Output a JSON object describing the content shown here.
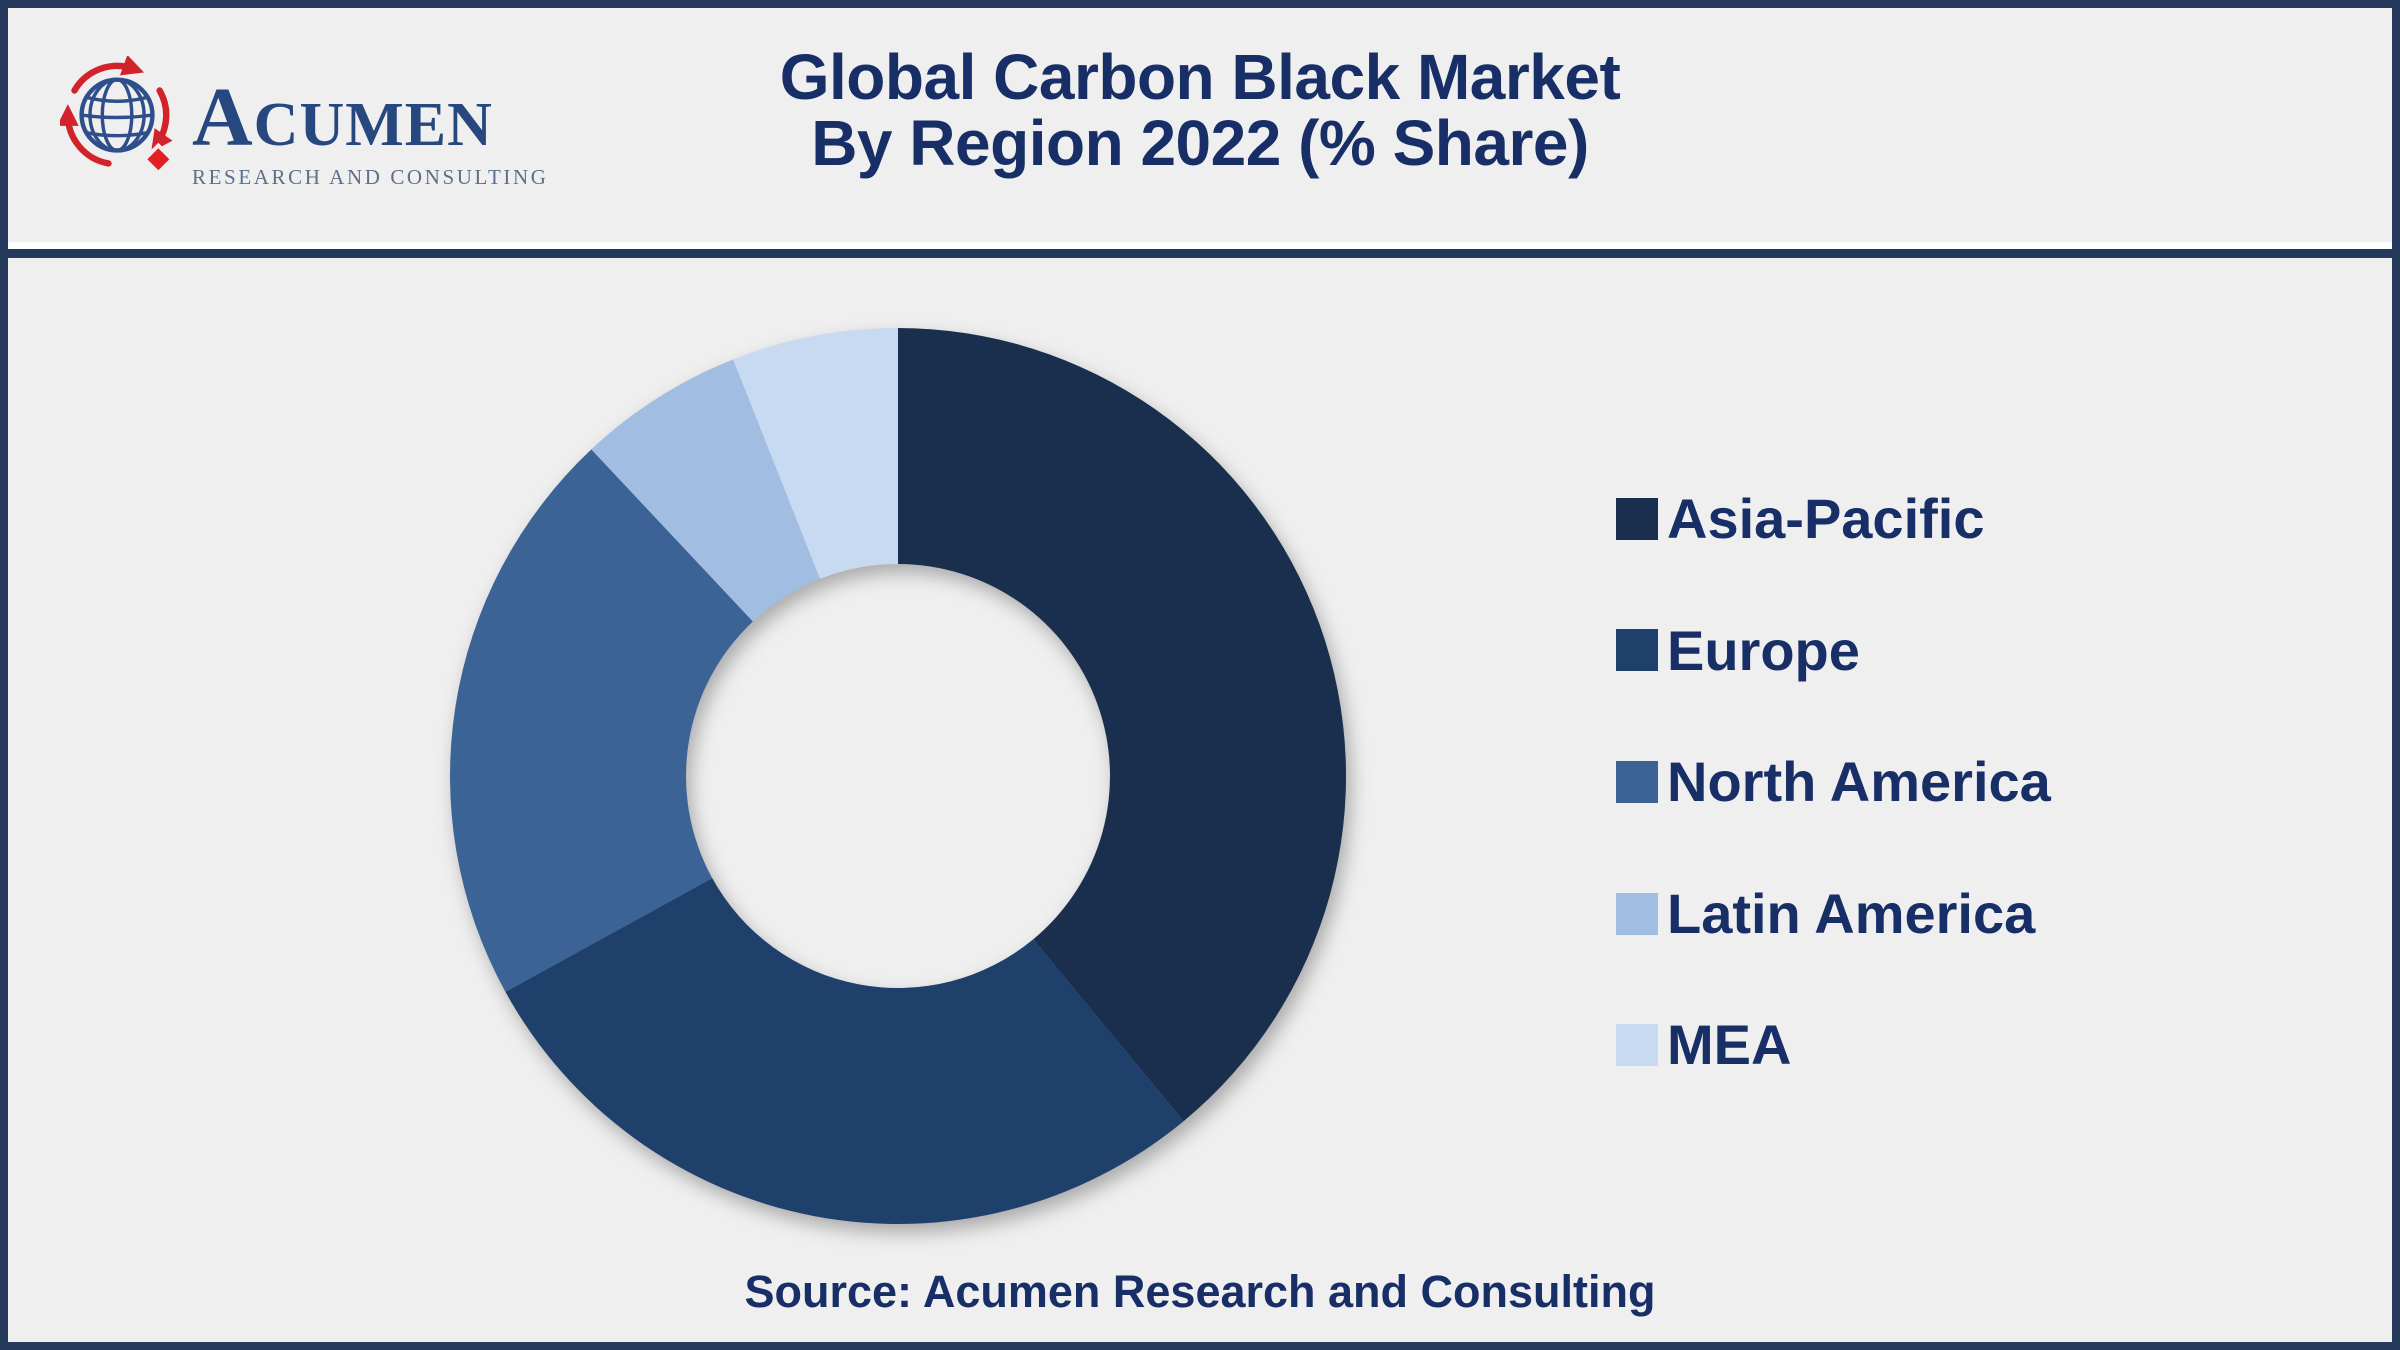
{
  "brand": {
    "name": "ACUMEN",
    "tagline": "RESEARCH AND CONSULTING"
  },
  "header": {
    "title_line1": "Global Carbon Black Market",
    "title_line2": "By Region 2022 (% Share)"
  },
  "footer": {
    "source": "Source: Acumen Research and Consulting"
  },
  "colors": {
    "background": "#EFEFEF",
    "frame": "#24385C",
    "title_text": "#172F66",
    "legend_text": "#172F66",
    "logo_name": "#27477F",
    "logo_tagline": "#5E6F8C",
    "logo_red": "#D2232A",
    "logo_globe": "#2E4E8C",
    "logo_diamond": "#E31E24"
  },
  "chart_data": {
    "type": "pie",
    "subtype": "donut",
    "title": "Global Carbon Black Market By Region 2022 (% Share)",
    "unit": "% share",
    "start_angle_deg": 0,
    "direction": "clockwise",
    "legend_position": "right",
    "inner_radius_ratio": 0.473,
    "values_are_estimated_from_arc_angles": true,
    "segments": [
      {
        "label": "Asia-Pacific",
        "value": 39,
        "color": "#1A2F4D"
      },
      {
        "label": "Europe",
        "value": 28,
        "color": "#1F406B"
      },
      {
        "label": "North America",
        "value": 21,
        "color": "#3B6396"
      },
      {
        "label": "Latin America",
        "value": 6,
        "color": "#A1BDE1"
      },
      {
        "label": "MEA",
        "value": 6,
        "color": "#C7DAF1"
      }
    ]
  }
}
